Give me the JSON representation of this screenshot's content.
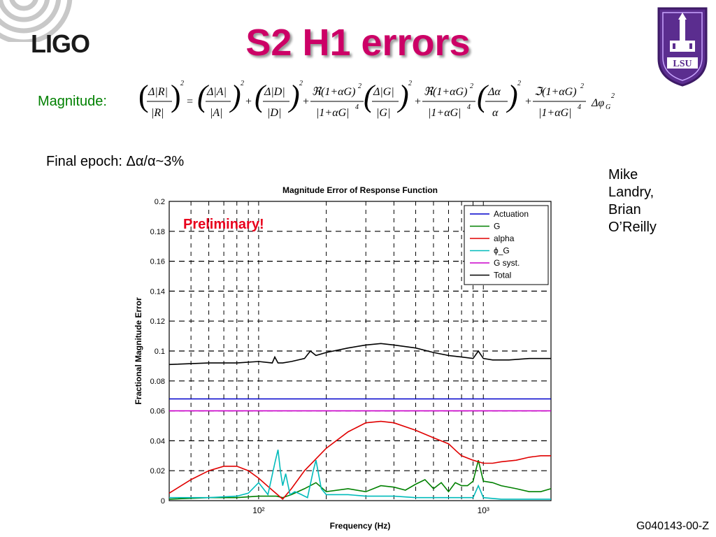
{
  "slide": {
    "title": "S2 H1 errors",
    "logo_text": "LIGO",
    "seal_text": "LSU",
    "magnitude_label": "Magnitude:",
    "final_epoch_label": "Final epoch: Δα/α~3%",
    "authors": [
      "Mike",
      "Landry,",
      "Brian",
      "O’Reilly"
    ],
    "doc_id": "G040143-00-Z",
    "preliminary": "Preliminary!"
  },
  "formula": {
    "description": "(Δ|R|/|R|)² = (Δ|A|/|A|)² + (Δ|D|/|D|)² + ℜ(1+αG)²/|1+αG|⁴ (Δ|G|/|G|)² + ℜ(1+αG)²/|1+αG|⁴ (Δα/α)² + ℑ(1+αG)²/|1+αG|⁴ Δφ_G²"
  },
  "colors": {
    "title": "#cc0066",
    "magnitude_label": "#008000",
    "preliminary": "#e8001c",
    "seal": "#5b2d8f"
  },
  "chart_data": {
    "type": "line",
    "title": "Magnitude Error of Response Function",
    "xlabel": "Frequency (Hz)",
    "ylabel": "Fractional Magnitude Error",
    "xscale": "log",
    "xlim": [
      40,
      2000
    ],
    "ylim": [
      0,
      0.2
    ],
    "yticks": [
      0,
      0.02,
      0.04,
      0.06,
      0.08,
      0.1,
      0.12,
      0.14,
      0.16,
      0.18,
      0.2
    ],
    "xticks": [
      100,
      1000
    ],
    "xtick_labels": [
      "10²",
      "10³"
    ],
    "ytick_labels": [
      "0",
      "0.02",
      "0.04",
      "0.06",
      "0.08",
      "0.1",
      "0.12",
      "0.14",
      "0.16",
      "0.18",
      "0.2"
    ],
    "grid": true,
    "legend_position": "top-right",
    "series": [
      {
        "name": "Actuation",
        "color": "#0000cc",
        "x": [
          40,
          2000
        ],
        "y": [
          0.068,
          0.068
        ]
      },
      {
        "name": "G",
        "color": "#008000",
        "x": [
          40,
          60,
          80,
          100,
          120,
          128,
          140,
          160,
          180,
          200,
          250,
          300,
          350,
          400,
          450,
          500,
          550,
          600,
          650,
          700,
          750,
          800,
          850,
          900,
          950,
          1000,
          1100,
          1200,
          1400,
          1600,
          1800,
          2000
        ],
        "y": [
          0.001,
          0.002,
          0.002,
          0.003,
          0.003,
          0.002,
          0.004,
          0.008,
          0.012,
          0.006,
          0.008,
          0.006,
          0.01,
          0.009,
          0.007,
          0.011,
          0.014,
          0.008,
          0.012,
          0.006,
          0.012,
          0.01,
          0.01,
          0.013,
          0.027,
          0.013,
          0.012,
          0.01,
          0.008,
          0.006,
          0.006,
          0.008
        ]
      },
      {
        "name": "alpha",
        "color": "#e00000",
        "x": [
          40,
          50,
          60,
          70,
          80,
          90,
          100,
          115,
          128,
          140,
          160,
          200,
          250,
          300,
          350,
          400,
          500,
          600,
          700,
          760,
          800,
          900,
          1000,
          1100,
          1200,
          1400,
          1600,
          1800,
          2000
        ],
        "y": [
          0.005,
          0.014,
          0.02,
          0.023,
          0.023,
          0.02,
          0.015,
          0.007,
          0.001,
          0.008,
          0.02,
          0.035,
          0.046,
          0.052,
          0.053,
          0.052,
          0.047,
          0.042,
          0.038,
          0.033,
          0.03,
          0.027,
          0.025,
          0.025,
          0.026,
          0.027,
          0.029,
          0.03,
          0.03
        ]
      },
      {
        "name": "ϕ_G",
        "color": "#00bbbb",
        "x": [
          40,
          60,
          80,
          90,
          100,
          110,
          118,
          122,
          125,
          128,
          132,
          138,
          145,
          155,
          165,
          175,
          180,
          190,
          200,
          250,
          300,
          400,
          500,
          600,
          700,
          800,
          900,
          950,
          1000,
          1200,
          1500,
          2000
        ],
        "y": [
          0.002,
          0.002,
          0.003,
          0.005,
          0.012,
          0.004,
          0.025,
          0.034,
          0.02,
          0.01,
          0.018,
          0.004,
          0.006,
          0.004,
          0.002,
          0.02,
          0.027,
          0.008,
          0.004,
          0.004,
          0.003,
          0.003,
          0.002,
          0.002,
          0.002,
          0.002,
          0.002,
          0.01,
          0.002,
          0.001,
          0.001,
          0.001
        ]
      },
      {
        "name": "G syst.",
        "color": "#cc00cc",
        "x": [
          40,
          2000
        ],
        "y": [
          0.06,
          0.06
        ]
      },
      {
        "name": "Total",
        "color": "#000000",
        "x": [
          40,
          60,
          80,
          100,
          115,
          118,
          122,
          128,
          140,
          160,
          170,
          180,
          200,
          250,
          300,
          350,
          400,
          500,
          600,
          700,
          800,
          900,
          950,
          1000,
          1100,
          1300,
          1600,
          2000
        ],
        "y": [
          0.091,
          0.092,
          0.092,
          0.093,
          0.092,
          0.096,
          0.092,
          0.092,
          0.093,
          0.095,
          0.1,
          0.097,
          0.099,
          0.102,
          0.104,
          0.105,
          0.104,
          0.102,
          0.099,
          0.097,
          0.096,
          0.095,
          0.1,
          0.095,
          0.094,
          0.094,
          0.095,
          0.095
        ]
      }
    ]
  }
}
